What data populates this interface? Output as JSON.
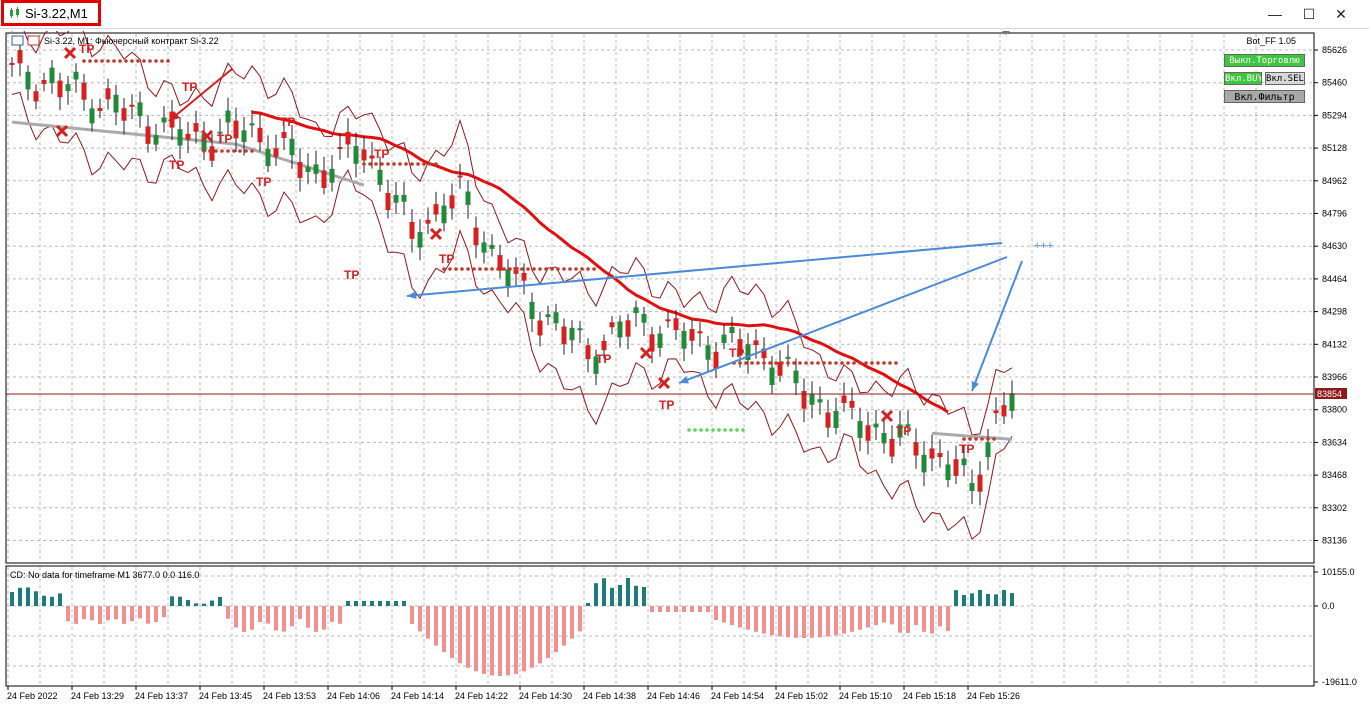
{
  "window": {
    "title": "Si-3.22,M1",
    "minimize_icon": "minimize-icon",
    "maximize_icon": "maximize-icon",
    "close_icon": "close-icon"
  },
  "main_chart": {
    "header": "Si-3.22, M1:  Фьючерсный контракт Si-3.22",
    "ea_label": "Bot_FF 1.05",
    "current_price": "83854",
    "price_ticks": [
      "85626",
      "85460",
      "85294",
      "85128",
      "84962",
      "84796",
      "84630",
      "84464",
      "84298",
      "84132",
      "83966",
      "83800",
      "83634",
      "83468",
      "83302",
      "83136"
    ],
    "annotation_text": "+++",
    "tp_label": "TP",
    "colors": {
      "bull": "#1f8a3a",
      "bear": "#d42020",
      "ma_red": "#e01010",
      "ma_gray": "#aaaaaa",
      "band": "#8b1a1a",
      "arrow": "#4a8ad8",
      "sl_dots": "#c0392b",
      "tp_dots": "#5dd35d"
    }
  },
  "buttons": {
    "trading_off": "Выкл.Торговлю",
    "buy_on": "Вкл.BUY",
    "sell_on": "Вкл.SELL",
    "filter_on": "Вкл.Фильтр"
  },
  "indicator": {
    "label": "CD: No data for timeframe M1 3677.0 0.0 116.0",
    "ticks": [
      "10155.0",
      "0.0",
      "-19611.0"
    ]
  },
  "time_axis": [
    "24 Feb 2022",
    "24 Feb 13:29",
    "24 Feb 13:37",
    "24 Feb 13:45",
    "24 Feb 13:53",
    "24 Feb 14:06",
    "24 Feb 14:14",
    "24 Feb 14:22",
    "24 Feb 14:30",
    "24 Feb 14:38",
    "24 Feb 14:46",
    "24 Feb 14:54",
    "24 Feb 15:02",
    "24 Feb 15:10",
    "24 Feb 15:18",
    "24 Feb 15:26"
  ]
}
